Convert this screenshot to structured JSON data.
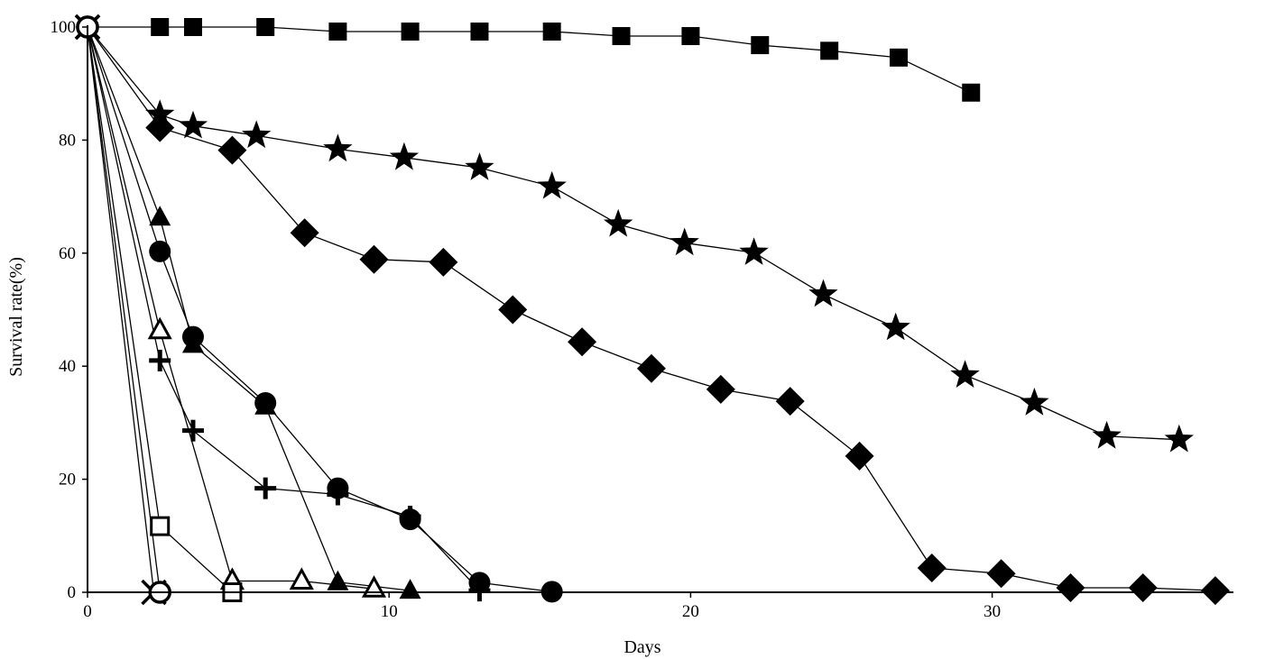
{
  "chart_data": {
    "type": "line",
    "xlabel": "Days",
    "ylabel": "Survival rate(%)",
    "xlim": [
      0,
      38
    ],
    "ylim": [
      0,
      100
    ],
    "x_ticks": [
      0,
      10,
      20,
      30
    ],
    "y_ticks": [
      0,
      20,
      40,
      60,
      80,
      100
    ],
    "grid": false,
    "legend": false,
    "series": [
      {
        "marker": "square-filled",
        "x": [
          0,
          2.4,
          3.5,
          5.9,
          8.3,
          10.7,
          13.0,
          15.4,
          17.7,
          20.0,
          22.3,
          24.6,
          26.9,
          29.3
        ],
        "y": [
          100,
          100,
          100,
          100,
          99.2,
          99.2,
          99.2,
          99.2,
          98.4,
          98.4,
          96.8,
          95.8,
          94.6,
          88.4
        ]
      },
      {
        "marker": "star-filled",
        "x": [
          0,
          2.4,
          3.5,
          5.6,
          8.3,
          10.5,
          13.0,
          15.4,
          17.6,
          19.8,
          22.1,
          24.4,
          26.8,
          29.1,
          31.4,
          33.8,
          36.2
        ],
        "y": [
          100,
          84.5,
          82.5,
          80.8,
          78.4,
          76.9,
          75.1,
          71.8,
          65.1,
          61.8,
          60.1,
          52.7,
          46.8,
          38.4,
          33.5,
          27.6,
          27.0
        ]
      },
      {
        "marker": "diamond-filled",
        "x": [
          0,
          2.4,
          4.8,
          7.2,
          9.5,
          11.8,
          14.1,
          16.4,
          18.7,
          21.0,
          23.3,
          25.6,
          28.0,
          30.3,
          32.6,
          35.0,
          37.4
        ],
        "y": [
          100,
          82.2,
          78.2,
          63.6,
          58.9,
          58.4,
          50.0,
          44.3,
          39.6,
          35.9,
          33.8,
          24.1,
          4.3,
          3.3,
          0.8,
          0.8,
          0.3
        ]
      },
      {
        "marker": "triangle-filled",
        "x": [
          0,
          2.4,
          3.5,
          5.9,
          8.3,
          10.7
        ],
        "y": [
          100,
          66.3,
          43.8,
          32.9,
          1.8,
          0.3
        ]
      },
      {
        "marker": "circle-filled",
        "x": [
          0,
          2.4,
          3.5,
          5.9,
          8.3,
          10.7,
          13.0,
          15.4
        ],
        "y": [
          100,
          60.3,
          45.2,
          33.5,
          18.4,
          12.9,
          1.7,
          0.1
        ]
      },
      {
        "marker": "triangle-open",
        "x": [
          0,
          2.4,
          4.8,
          7.1,
          9.5
        ],
        "y": [
          100,
          46.3,
          2.0,
          2.0,
          0.6
        ]
      },
      {
        "marker": "plus",
        "x": [
          0,
          2.4,
          3.5,
          5.9,
          8.3,
          10.7,
          13.0
        ],
        "y": [
          100,
          41.0,
          28.6,
          18.4,
          17.3,
          13.4,
          0.3
        ]
      },
      {
        "marker": "square-open",
        "x": [
          0,
          2.4,
          4.8
        ],
        "y": [
          100,
          11.7,
          0
        ]
      },
      {
        "marker": "x",
        "x": [
          0,
          2.2
        ],
        "y": [
          100,
          0
        ]
      },
      {
        "marker": "circle-open",
        "x": [
          0,
          2.4
        ],
        "y": [
          100,
          0
        ]
      }
    ]
  }
}
